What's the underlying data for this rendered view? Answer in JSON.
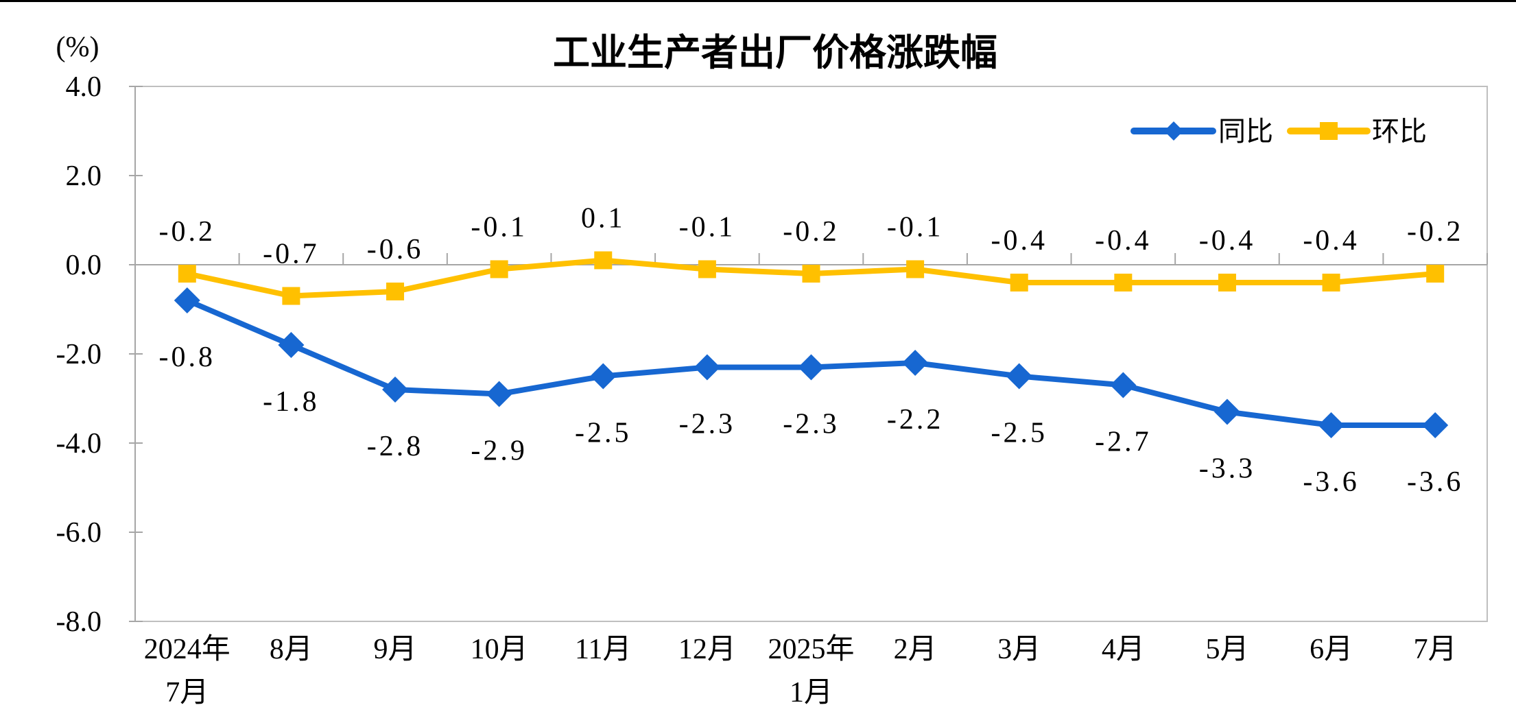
{
  "page": {
    "background": "#FFFFFF",
    "top_border_color": "#000000"
  },
  "chart_data": {
    "type": "line",
    "title": "工业生产者出厂价格涨跌幅",
    "unit_label": "(%)",
    "categories": [
      [
        "2024年",
        "7月"
      ],
      [
        "8月"
      ],
      [
        "9月"
      ],
      [
        "10月"
      ],
      [
        "11月"
      ],
      [
        "12月"
      ],
      [
        "2025年",
        "1月"
      ],
      [
        "2月"
      ],
      [
        "3月"
      ],
      [
        "4月"
      ],
      [
        "5月"
      ],
      [
        "6月"
      ],
      [
        "7月"
      ]
    ],
    "y_axis": {
      "min": -8.0,
      "max": 4.0,
      "tick_step": 2.0,
      "ticks": [
        {
          "value": 4,
          "label": "4.0"
        },
        {
          "value": 2,
          "label": "2.0"
        },
        {
          "value": 0,
          "label": "0.0"
        },
        {
          "value": -2,
          "label": "-2.0"
        },
        {
          "value": -4,
          "label": "-4.0"
        },
        {
          "value": -6,
          "label": "-6.0"
        },
        {
          "value": -8,
          "label": "-8.0"
        }
      ]
    },
    "series": [
      {
        "key": "yoy",
        "name": "同比",
        "color": "#1767D1",
        "marker": "diamond",
        "label_position": "below",
        "values": [
          -0.8,
          -1.8,
          -2.8,
          -2.9,
          -2.5,
          -2.3,
          -2.3,
          -2.2,
          -2.5,
          -2.7,
          -3.3,
          -3.6,
          -3.6
        ],
        "labels": [
          "-0.8",
          "-1.8",
          "-2.8",
          "-2.9",
          "-2.5",
          "-2.3",
          "-2.3",
          "-2.2",
          "-2.5",
          "-2.7",
          "-3.3",
          "-3.6",
          "-3.6"
        ]
      },
      {
        "key": "mom",
        "name": "环比",
        "color": "#FFC000",
        "marker": "square",
        "label_position": "above",
        "values": [
          -0.2,
          -0.7,
          -0.6,
          -0.1,
          0.1,
          -0.1,
          -0.2,
          -0.1,
          -0.4,
          -0.4,
          -0.4,
          -0.4,
          -0.2
        ],
        "labels": [
          "-0.2",
          "-0.7",
          "-0.6",
          "-0.1",
          "0.1",
          "-0.1",
          "-0.2",
          "-0.1",
          "-0.4",
          "-0.4",
          "-0.4",
          "-0.4",
          "-0.2"
        ]
      }
    ],
    "legend": {
      "position": "top-right-inside",
      "items": [
        "同比",
        "环比"
      ]
    },
    "colors": {
      "axis": "#A6A6A6",
      "frame": "#BFBFBF",
      "text": "#000000"
    },
    "grid": "zero-baseline-only"
  }
}
